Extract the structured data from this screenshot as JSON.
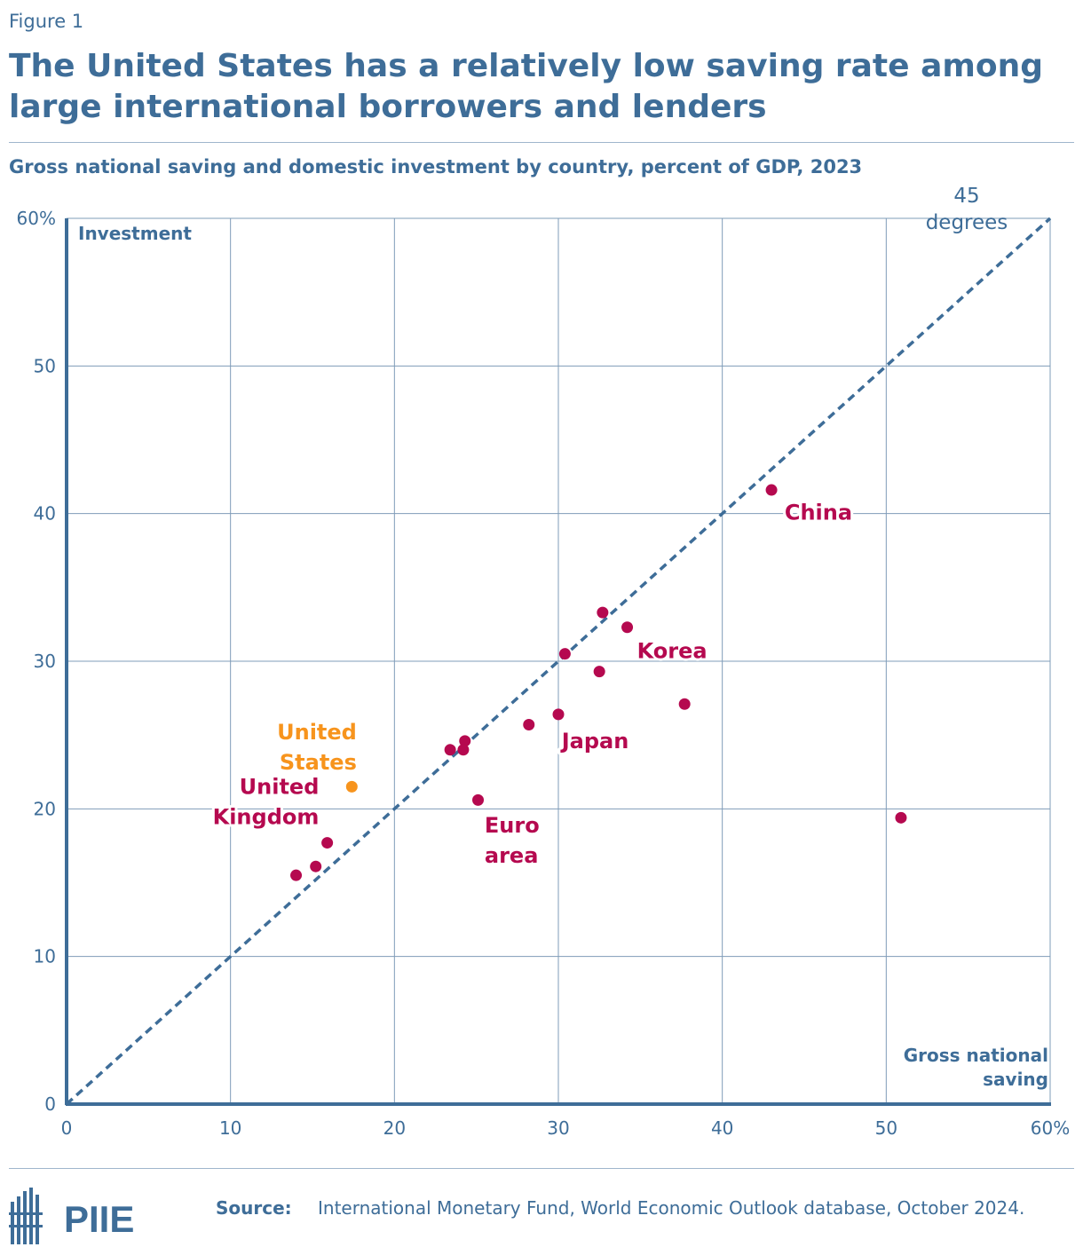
{
  "figure_label": "Figure 1",
  "title": "The United States has a relatively low saving rate among large international borrowers and lenders",
  "subtitle": "Gross national saving and domestic investment by country, percent of GDP, 2023",
  "source_label": "Source:",
  "source_text": "International Monetary Fund, World Economic Outlook database, October 2024.",
  "logo_text": "PIIE",
  "colors": {
    "primary": "#3e6d98",
    "point": "#b5094f",
    "us": "#f7941d",
    "grid": "#7f9cb8"
  },
  "chart_data": {
    "type": "scatter",
    "xlabel": [
      "Gross national",
      "saving"
    ],
    "ylabel": "Investment",
    "xlim": [
      0,
      60
    ],
    "ylim": [
      0,
      60
    ],
    "x_ticks": [
      "0",
      "10",
      "20",
      "30",
      "40",
      "50",
      "60%"
    ],
    "y_ticks": [
      "0",
      "10",
      "20",
      "30",
      "40",
      "50",
      "60%"
    ],
    "reference_line": {
      "label": [
        "45",
        "degrees"
      ],
      "from": [
        0,
        0
      ],
      "to": [
        60,
        60
      ]
    },
    "points": [
      {
        "x": 14.0,
        "y": 15.5,
        "group": "other"
      },
      {
        "x": 15.2,
        "y": 16.1,
        "group": "other"
      },
      {
        "x": 15.9,
        "y": 17.7,
        "group": "other"
      },
      {
        "x": 17.4,
        "y": 21.5,
        "group": "us"
      },
      {
        "x": 23.4,
        "y": 24.0,
        "group": "other"
      },
      {
        "x": 24.3,
        "y": 24.6,
        "group": "other"
      },
      {
        "x": 24.2,
        "y": 24.0,
        "group": "other"
      },
      {
        "x": 25.1,
        "y": 20.6,
        "group": "other"
      },
      {
        "x": 28.2,
        "y": 25.7,
        "group": "other"
      },
      {
        "x": 30.0,
        "y": 26.4,
        "group": "other"
      },
      {
        "x": 30.4,
        "y": 30.5,
        "group": "other"
      },
      {
        "x": 32.5,
        "y": 29.3,
        "group": "other"
      },
      {
        "x": 32.7,
        "y": 33.3,
        "group": "other"
      },
      {
        "x": 34.2,
        "y": 32.3,
        "group": "other"
      },
      {
        "x": 37.7,
        "y": 27.1,
        "group": "other"
      },
      {
        "x": 43.0,
        "y": 41.6,
        "group": "other"
      },
      {
        "x": 50.9,
        "y": 19.4,
        "group": "other"
      }
    ],
    "annotations": [
      {
        "lines": [
          "United",
          "States"
        ],
        "x": 17.7,
        "y": 24.7,
        "anchor": "end",
        "group": "us"
      },
      {
        "lines": [
          "United",
          "Kingdom"
        ],
        "x": 15.4,
        "y": 21.0,
        "anchor": "end",
        "group": "other"
      },
      {
        "lines": [
          "Euro",
          "area"
        ],
        "x": 25.5,
        "y": 18.4,
        "anchor": "start",
        "group": "other"
      },
      {
        "lines": [
          "Japan"
        ],
        "x": 30.2,
        "y": 24.1,
        "anchor": "start",
        "group": "other"
      },
      {
        "lines": [
          "Korea"
        ],
        "x": 34.8,
        "y": 30.2,
        "anchor": "start",
        "group": "other"
      },
      {
        "lines": [
          "China"
        ],
        "x": 43.8,
        "y": 39.6,
        "anchor": "start",
        "group": "other"
      }
    ]
  }
}
